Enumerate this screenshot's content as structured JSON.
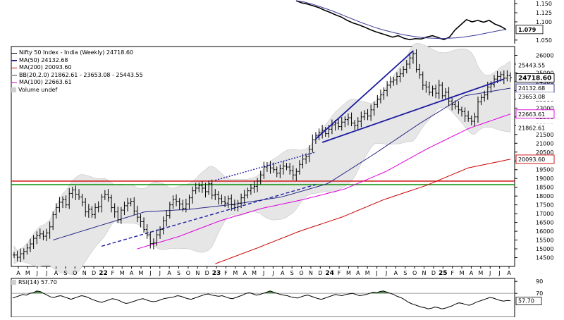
{
  "chart_data": [
    {
      "type": "line",
      "panel": "upper-ratio",
      "y_ticks": [
        "1.150",
        "1.125",
        "1.100",
        "1.050"
      ],
      "last_value": "1.079",
      "ylim": [
        1.04,
        1.16
      ],
      "series": [
        {
          "role": "ratio",
          "color": "#000000",
          "values": [
            1.158,
            1.152,
            1.149,
            1.144,
            1.139,
            1.132,
            1.126,
            1.119,
            1.113,
            1.104,
            1.097,
            1.092,
            1.086,
            1.079,
            1.073,
            1.068,
            1.063,
            1.058,
            1.062,
            1.055,
            1.051,
            1.054,
            1.053,
            1.058,
            1.062,
            1.057,
            1.051,
            1.058,
            1.078,
            1.092,
            1.106,
            1.1,
            1.104,
            1.099,
            1.104,
            1.094,
            1.088,
            1.079
          ]
        },
        {
          "role": "average",
          "color": "#3a3a9a",
          "values": [
            1.158,
            1.155,
            1.15,
            1.144,
            1.137,
            1.13,
            1.122,
            1.114,
            1.106,
            1.098,
            1.091,
            1.084,
            1.078,
            1.073,
            1.068,
            1.064,
            1.061,
            1.058,
            1.056,
            1.055,
            1.054,
            1.055,
            1.056,
            1.058,
            1.061,
            1.064,
            1.068,
            1.072,
            1.076,
            1.079
          ]
        }
      ]
    },
    {
      "type": "line",
      "panel": "price",
      "legend": [
        {
          "text": "Nifty 50 Index - India (Weekly) 24718.60",
          "color": "#000000",
          "kind": "bars"
        },
        {
          "text": "MA(50) 24132.68",
          "color": "#2b2b88",
          "kind": "line"
        },
        {
          "text": "MA(200) 20093.60",
          "color": "#cc0000",
          "kind": "line"
        },
        {
          "text": "BB(20,2.0) 21862.61 - 23653.08 - 25443.55",
          "color": "#a0a0a0",
          "kind": "line"
        },
        {
          "text": "MA(100) 22663.61",
          "color": "#dd00dd",
          "kind": "line"
        },
        {
          "text": "Volume undef",
          "color": "#606060",
          "kind": "square"
        }
      ],
      "x_labels": [
        "A",
        "M",
        "J",
        "J",
        "A",
        "S",
        "O",
        "N",
        "D",
        "22",
        "F",
        "M",
        "A",
        "M",
        "J",
        "J",
        "A",
        "S",
        "O",
        "N",
        "D",
        "23",
        "F",
        "M",
        "A",
        "M",
        "J",
        "J",
        "A",
        "S",
        "O",
        "N",
        "D",
        "24",
        "F",
        "M",
        "A",
        "M",
        "J",
        "J",
        "A",
        "S",
        "O",
        "N",
        "D",
        "25",
        "F",
        "M",
        "A",
        "M",
        "J",
        "J",
        "A"
      ],
      "y_ticks": [
        26000,
        25500,
        25000,
        24500,
        24000,
        23500,
        23000,
        22500,
        22000,
        21500,
        21000,
        20500,
        20000,
        19500,
        19000,
        18500,
        18000,
        17500,
        17000,
        16500,
        16000,
        15500,
        15000,
        14500
      ],
      "ylim": [
        14000,
        26500
      ],
      "last_value_labels": [
        {
          "value": 25443.55,
          "text": "25443.55",
          "style": "plain"
        },
        {
          "value": 24718.6,
          "text": "24718.60",
          "style": "bold"
        },
        {
          "value": 24132.68,
          "text": "24132.68",
          "style": "blue"
        },
        {
          "value": 23653.08,
          "text": "23653.08",
          "style": "plain"
        },
        {
          "value": 22663.61,
          "text": "22663.61",
          "style": "magenta"
        },
        {
          "value": 21862.61,
          "text": "21862.61",
          "style": "plain"
        },
        {
          "value": 20093.6,
          "text": "20093.60",
          "style": "red"
        }
      ],
      "price_weekly_close": [
        14650,
        14520,
        14720,
        14850,
        15050,
        15280,
        15600,
        15750,
        15850,
        15720,
        15900,
        16250,
        16950,
        17350,
        17650,
        17800,
        17500,
        18150,
        18350,
        18100,
        17950,
        17650,
        17100,
        17250,
        16950,
        17350,
        17400,
        17950,
        18100,
        17900,
        17350,
        17100,
        16650,
        17200,
        17450,
        17600,
        17700,
        17150,
        16800,
        16550,
        16100,
        15800,
        15300,
        15350,
        15800,
        16100,
        16600,
        16900,
        17500,
        17800,
        17700,
        17550,
        17300,
        17550,
        17900,
        18300,
        18450,
        18600,
        18450,
        18250,
        18700,
        18050,
        18100,
        17850,
        17700,
        17600,
        17850,
        17500,
        17350,
        17600,
        17900,
        18050,
        18300,
        18450,
        18550,
        18850,
        19200,
        19650,
        19750,
        19600,
        19500,
        19300,
        19550,
        19700,
        19650,
        19450,
        19200,
        19400,
        19800,
        20100,
        20250,
        20650,
        21200,
        21450,
        21600,
        21750,
        21550,
        21800,
        22050,
        22150,
        21950,
        22200,
        22350,
        22450,
        22150,
        22000,
        22250,
        22500,
        22700,
        22550,
        22900,
        23200,
        23500,
        23750,
        24000,
        24300,
        24500,
        24600,
        24800,
        24950,
        25200,
        25500,
        25850,
        26100,
        25200,
        24900,
        24300,
        24200,
        23900,
        24100,
        23850,
        24300,
        23700,
        23900,
        23400,
        23200,
        23100,
        22900,
        22800,
        22550,
        22400,
        22250,
        22500,
        23350,
        23600,
        23750,
        24200,
        24350,
        24650,
        24800,
        24900,
        24700,
        24850,
        24720
      ],
      "ma50_end_values": [
        15500,
        16300,
        17100,
        17250,
        17550,
        17950,
        18700,
        20350,
        22100,
        23700,
        24133
      ],
      "ma100_end_values": [
        15000,
        15700,
        16600,
        17300,
        17800,
        18400,
        19400,
        20700,
        21850,
        22664
      ],
      "ma200_end_values": [
        14150,
        15050,
        16000,
        16800,
        17800,
        18600,
        19600,
        20094
      ],
      "horizontal_levels": [
        {
          "value": 18850,
          "color": "#cc0000"
        },
        {
          "value": 18650,
          "color": "#008800"
        }
      ],
      "trendlines": [
        {
          "from": [
            "Jun 2022",
            15150
          ],
          "to": [
            "Dec 2023",
            18650
          ],
          "style": "dashed",
          "color": "#1a1aa0"
        },
        {
          "from": [
            "Dec 2022",
            18900
          ],
          "to": [
            "Dec 2023",
            20500
          ],
          "style": "dotted",
          "color": "#1a1aa0"
        },
        {
          "from": [
            "Dec 2023",
            21250
          ],
          "to": [
            "Sep 2024",
            26250
          ],
          "style": "solid",
          "color": "#1a1aa0"
        },
        {
          "from": [
            "Jan 2024",
            21050
          ],
          "to": [
            "Jun 2025",
            24650
          ],
          "style": "solid",
          "color": "#1a1aa0"
        }
      ]
    },
    {
      "type": "line",
      "panel": "rsi",
      "title": "RSI(14) 57.70",
      "y_ticks": [
        90,
        70
      ],
      "last_value": "57.70",
      "ylim": [
        30,
        95
      ],
      "overbought": 70,
      "values": [
        62,
        64,
        66,
        68,
        67,
        70,
        71,
        74,
        73,
        70,
        67,
        64,
        63,
        65,
        66,
        64,
        62,
        60,
        62,
        64,
        66,
        65,
        63,
        60,
        58,
        56,
        55,
        57,
        59,
        61,
        60,
        58,
        55,
        53,
        54,
        56,
        58,
        60,
        61,
        59,
        57,
        56,
        57,
        59,
        61,
        62,
        63,
        64,
        66,
        65,
        63,
        61,
        60,
        62,
        64,
        66,
        68,
        69,
        67,
        66,
        65,
        66,
        64,
        62,
        61,
        63,
        65,
        67,
        70,
        71,
        69,
        67,
        68,
        70,
        72,
        74,
        72,
        70,
        68,
        67,
        66,
        64,
        63,
        62,
        64,
        66,
        67,
        65,
        63,
        61,
        60,
        62,
        64,
        66,
        68,
        67,
        66,
        68,
        69,
        70,
        68,
        66,
        67,
        68,
        70,
        72,
        71,
        73,
        74,
        72,
        70,
        68,
        65,
        63,
        60,
        56,
        53,
        51,
        49,
        47,
        46,
        44,
        45,
        47,
        46,
        44,
        45,
        47,
        49,
        52,
        54,
        53,
        51,
        50,
        52,
        55,
        57,
        59,
        61,
        63,
        62,
        60,
        58,
        57,
        58,
        57.7
      ]
    }
  ]
}
